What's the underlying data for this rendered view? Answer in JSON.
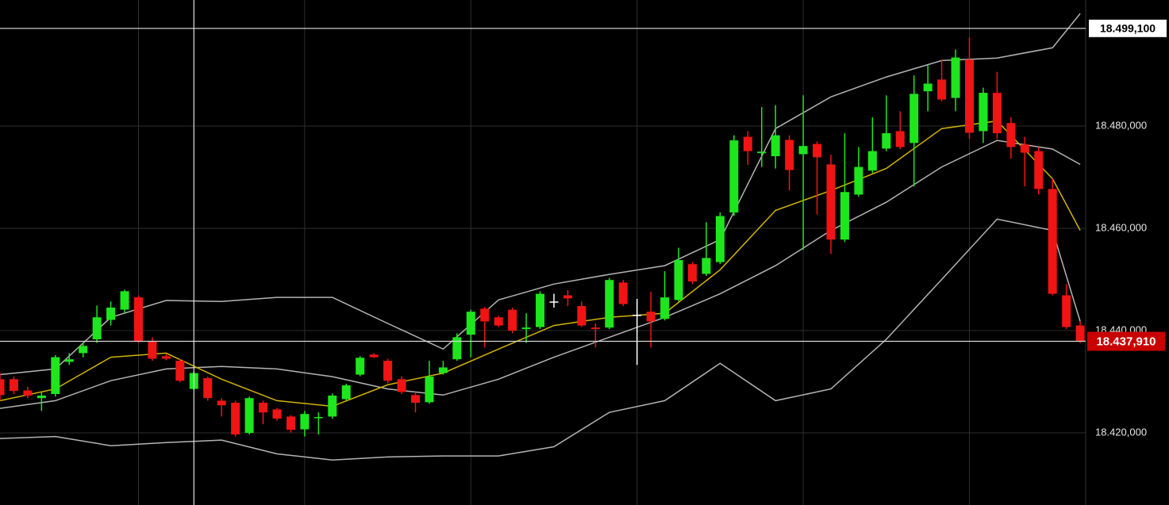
{
  "chart_data": {
    "type": "candlestick",
    "ylim": [
      18405.9,
      18504.65
    ],
    "yticks": [
      {
        "value": 18420,
        "label": "18.420,000"
      },
      {
        "value": 18440,
        "label": "18.440,000"
      },
      {
        "value": 18460,
        "label": "18.460,000"
      },
      {
        "value": 18480,
        "label": "18.480,000"
      }
    ],
    "grid": true,
    "xgrid": [
      10,
      22,
      34,
      46,
      58,
      70
    ],
    "up_color": "#1ee61e",
    "down_color": "#f01414",
    "flat_color": "#ffffff",
    "candles": {
      "open": [
        18430.5,
        18430.5,
        18428.3,
        18426.8,
        18427.6,
        18433.9,
        18435.6,
        18438.3,
        18442.1,
        18444.1,
        18446.5,
        18437.9,
        18435.0,
        18434.1,
        18428.6,
        18430.7,
        18426.3,
        18425.9,
        18420.0,
        18425.9,
        18424.6,
        18423.2,
        18420.7,
        18422.9,
        18423.2,
        18426.6,
        18431.4,
        18435.3,
        18434.1,
        18430.5,
        18427.4,
        18426.0,
        18431.7,
        18434.4,
        18439.2,
        18444.3,
        18442.6,
        18444.1,
        18440.3,
        18440.7,
        18445.7,
        18446.9,
        18444.8,
        18440.6,
        18440.6,
        18449.4,
        18443.1,
        18443.7,
        18442.3,
        18446.0,
        18453.0,
        18451.1,
        18453.4,
        18463.1,
        18477.9,
        18474.7,
        18474.1,
        18477.3,
        18474.5,
        18476.5,
        18472.5,
        18457.8,
        18466.6,
        18471.3,
        18475.6,
        18479.0,
        18476.7,
        18486.8,
        18489.1,
        18485.5,
        18493.0,
        18479.0,
        18486.5,
        18480.6,
        18476.4,
        18475.1,
        18467.7,
        18446.9,
        18441.0
      ],
      "high": [
        18431.7,
        18431.0,
        18429.0,
        18427.9,
        18435.2,
        18435.6,
        18437.6,
        18444.9,
        18445.7,
        18448.0,
        18446.9,
        18438.7,
        18435.5,
        18434.5,
        18432.1,
        18431.0,
        18426.8,
        18426.3,
        18427.1,
        18426.3,
        18424.9,
        18423.5,
        18424.3,
        18424.0,
        18427.7,
        18429.6,
        18435.0,
        18435.6,
        18434.5,
        18431.1,
        18428.0,
        18434.1,
        18434.1,
        18439.5,
        18444.1,
        18444.6,
        18442.9,
        18444.5,
        18443.4,
        18447.7,
        18447.2,
        18447.9,
        18445.7,
        18441.4,
        18450.3,
        18449.9,
        18446.2,
        18447.6,
        18451.6,
        18456.2,
        18453.4,
        18461.2,
        18463.1,
        18478.2,
        18479.0,
        18483.7,
        18484.1,
        18478.2,
        18486.0,
        18477.0,
        18474.4,
        18478.6,
        18475.9,
        18481.7,
        18486.0,
        18482.9,
        18489.9,
        18491.9,
        18493.0,
        18495.0,
        18497.3,
        18487.5,
        18490.6,
        18481.7,
        18477.9,
        18475.9,
        18469.7,
        18449.1,
        18441.8
      ],
      "low": [
        18426.3,
        18427.6,
        18426.8,
        18424.3,
        18427.1,
        18433.3,
        18434.8,
        18437.6,
        18441.0,
        18443.4,
        18437.6,
        18434.1,
        18434.2,
        18429.9,
        18428.3,
        18426.3,
        18423.2,
        18419.3,
        18419.7,
        18421.7,
        18422.4,
        18420.1,
        18419.3,
        18419.7,
        18422.8,
        18426.3,
        18431.1,
        18434.7,
        18429.7,
        18427.6,
        18424.0,
        18425.7,
        18431.4,
        18434.1,
        18434.8,
        18436.7,
        18440.7,
        18439.5,
        18437.6,
        18440.3,
        18444.5,
        18444.8,
        18440.7,
        18436.7,
        18440.3,
        18444.8,
        18433.3,
        18436.7,
        18442.0,
        18445.7,
        18449.1,
        18450.7,
        18453.0,
        18462.4,
        18472.4,
        18472.0,
        18471.7,
        18467.4,
        18455.8,
        18462.7,
        18455.0,
        18457.3,
        18466.2,
        18470.8,
        18475.1,
        18475.5,
        18468.2,
        18482.9,
        18484.8,
        18482.9,
        18477.5,
        18476.7,
        18477.5,
        18473.6,
        18468.2,
        18466.6,
        18446.9,
        18440.3,
        18437.6
      ],
      "close": [
        18427.4,
        18428.2,
        18427.3,
        18427.3,
        18434.8,
        18434.4,
        18437.0,
        18442.6,
        18444.5,
        18447.7,
        18437.9,
        18434.5,
        18434.5,
        18430.2,
        18431.7,
        18426.8,
        18425.4,
        18419.7,
        18426.8,
        18424.0,
        18422.8,
        18420.6,
        18423.7,
        18423.1,
        18427.3,
        18429.3,
        18434.7,
        18434.8,
        18430.2,
        18428.0,
        18425.9,
        18431.0,
        18432.8,
        18438.7,
        18443.7,
        18441.8,
        18441.0,
        18440.0,
        18440.6,
        18447.2,
        18445.7,
        18446.3,
        18441.0,
        18440.3,
        18449.9,
        18445.2,
        18443.1,
        18441.8,
        18446.5,
        18453.8,
        18449.6,
        18454.2,
        18462.4,
        18477.2,
        18475.1,
        18475.0,
        18478.2,
        18471.4,
        18476.1,
        18473.9,
        18457.8,
        18467.1,
        18472.0,
        18475.1,
        18478.6,
        18475.9,
        18486.3,
        18488.3,
        18485.2,
        18493.4,
        18478.7,
        18486.5,
        18478.6,
        18475.9,
        18474.8,
        18467.7,
        18447.2,
        18440.7,
        18437.9
      ]
    },
    "lines": [
      {
        "color": "#b4b4b4",
        "x": [
          0,
          4,
          8,
          12,
          16,
          20,
          24,
          28,
          32,
          36,
          40,
          44,
          48,
          52,
          56,
          60,
          64,
          68,
          72,
          76,
          78
        ],
        "values": [
          18431.4,
          18432.5,
          18442.6,
          18445.9,
          18445.7,
          18446.5,
          18446.5,
          18441.4,
          18436.4,
          18446.0,
          18449.1,
          18451.0,
          18452.7,
          18457.8,
          18479.5,
          18485.7,
          18489.6,
          18492.8,
          18493.3,
          18495.3,
          18502.0
        ]
      },
      {
        "color": "#b4b4b4",
        "x": [
          0,
          4,
          8,
          12,
          16,
          20,
          24,
          28,
          32,
          36,
          40,
          44,
          48,
          52,
          56,
          60,
          64,
          68,
          72,
          76,
          78
        ],
        "values": [
          18424.8,
          18426.3,
          18430.2,
          18432.5,
          18433.0,
          18432.5,
          18431.0,
          18428.6,
          18427.4,
          18430.5,
          18434.8,
          18438.7,
          18442.6,
          18447.2,
          18452.7,
          18459.6,
          18465.1,
          18472.0,
          18477.2,
          18475.5,
          18472.5
        ]
      },
      {
        "color": "#b4b4b4",
        "x": [
          0,
          4,
          8,
          12,
          16,
          20,
          24,
          28,
          32,
          36,
          40,
          44,
          48,
          52,
          56,
          60,
          64,
          68,
          72,
          76,
          78
        ],
        "values": [
          18418.9,
          18419.3,
          18417.5,
          18418.1,
          18418.6,
          18415.9,
          18414.7,
          18415.3,
          18415.5,
          18415.5,
          18417.3,
          18424.0,
          18426.3,
          18433.6,
          18426.3,
          18428.6,
          18438.3,
          18450.0,
          18461.8,
          18459.6,
          18441.8
        ]
      },
      {
        "color": "#d2b400",
        "x": [
          0,
          4,
          8,
          12,
          16,
          20,
          24,
          28,
          32,
          36,
          40,
          44,
          48,
          52,
          56,
          60,
          64,
          68,
          72,
          76,
          78
        ],
        "values": [
          18426.3,
          18428.6,
          18434.8,
          18435.6,
          18430.5,
          18426.3,
          18425.2,
          18429.4,
          18431.7,
          18436.4,
          18441.0,
          18442.6,
          18443.4,
          18451.9,
          18463.5,
          18467.4,
          18471.7,
          18479.5,
          18481.0,
          18469.7,
          18459.6
        ]
      }
    ],
    "crosshair": {
      "index": 14,
      "value": 18499.1,
      "label": "18.499,100"
    },
    "last_price": {
      "value": 18437.91,
      "label": "18.437,910",
      "color": "#c80000"
    }
  }
}
